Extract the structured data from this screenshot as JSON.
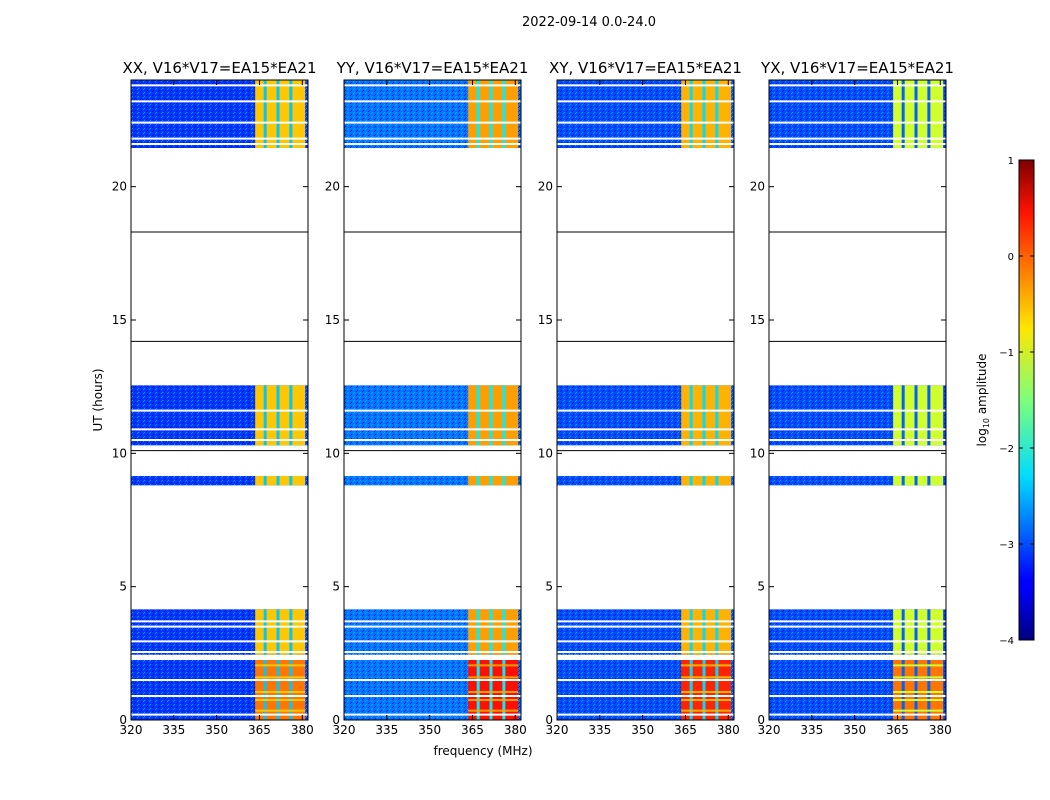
{
  "figure_title": "2022-09-14 0.0-24.0",
  "chart_data": {
    "type": "heatmap",
    "xlabel": "frequency (MHz)",
    "ylabel": "UT (hours)",
    "xlim": [
      320,
      382
    ],
    "ylim": [
      0,
      24
    ],
    "xticks": [
      320,
      335,
      350,
      365,
      380
    ],
    "xtick_labels": [
      "320",
      "335",
      "350",
      "365",
      "380"
    ],
    "yticks": [
      0,
      5,
      10,
      15,
      20
    ],
    "ytick_labels": [
      "0",
      "5",
      "10",
      "15",
      "20"
    ],
    "panels": [
      {
        "title": "XX, V16*V17=EA15*EA21",
        "background_log_amp": -3.1,
        "band_log_amp": -0.6,
        "early_band_log_amp": -0.2
      },
      {
        "title": "YY, V16*V17=EA15*EA21",
        "background_log_amp": -2.8,
        "band_log_amp": -0.4,
        "early_band_log_amp": 0.3
      },
      {
        "title": "XY, V16*V17=EA15*EA21",
        "background_log_amp": -3.0,
        "band_log_amp": -0.5,
        "early_band_log_amp": 0.2
      },
      {
        "title": "YX, V16*V17=EA15*EA21",
        "background_log_amp": -3.0,
        "band_log_amp": -1.1,
        "early_band_log_amp": -0.2
      }
    ],
    "data_blocks_hours": [
      [
        0.0,
        2.25
      ],
      [
        2.45,
        4.15
      ],
      [
        8.8,
        9.15
      ],
      [
        10.3,
        12.55
      ],
      [
        21.45,
        24.0
      ]
    ],
    "gap_lines_hours": [
      18.3,
      14.2,
      10.1
    ],
    "flag_lines_hours": [
      0.2,
      0.9,
      1.5,
      2.55,
      2.95,
      3.5,
      3.7,
      10.5,
      10.9,
      11.6,
      21.6,
      21.8,
      22.4,
      23.2,
      23.8
    ],
    "rfi_band_mhz": [
      363.5,
      381
    ],
    "rfi_notch_mhz": [
      367,
      371.5,
      376
    ],
    "colorbar": {
      "label": "log10 amplitude",
      "range": [
        -4,
        1
      ],
      "ticks": [
        -4,
        -3,
        -2,
        -1,
        0,
        1
      ],
      "tick_labels": [
        "−4",
        "−3",
        "−2",
        "−1",
        "0",
        "1"
      ]
    }
  }
}
